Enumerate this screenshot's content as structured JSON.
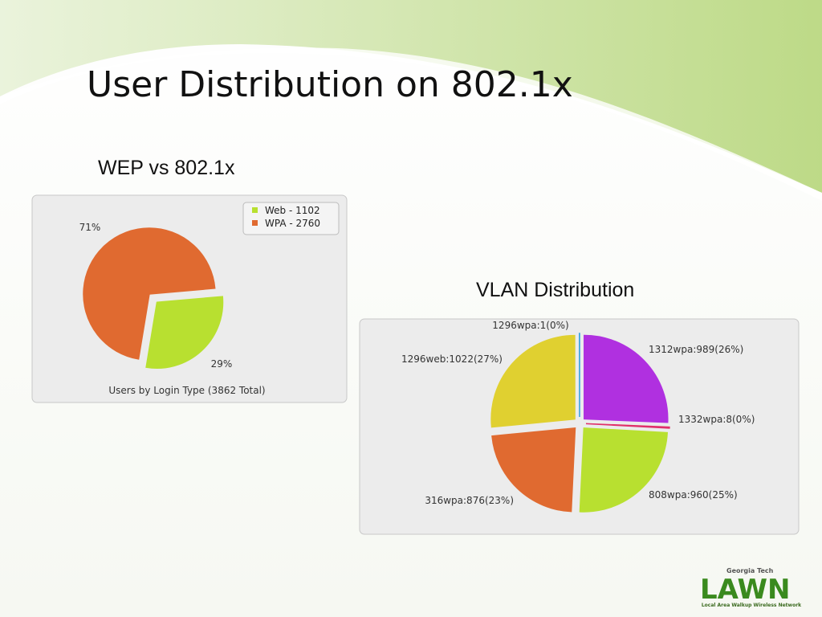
{
  "slide": {
    "title": "User Distribution on 802.1x"
  },
  "chart_data": [
    {
      "type": "pie",
      "heading": "WEP vs 802.1x",
      "title": "Users by Login Type (3862 Total)",
      "categories": [
        "Web - 1102",
        "WPA - 2760"
      ],
      "values": [
        29,
        71
      ],
      "value_labels": [
        "29%",
        "71%"
      ],
      "colors": [
        "#b8e030",
        "#e06a30"
      ],
      "legend": "top-right"
    },
    {
      "type": "pie",
      "heading": "VLAN Distribution",
      "categories": [
        "1312wpa:989(26%)",
        "1332wpa:8(0%)",
        "808wpa:960(25%)",
        "316wpa:876(23%)",
        "1296web:1022(27%)",
        "1296wpa:1(0%)"
      ],
      "values": [
        989,
        8,
        960,
        876,
        1022,
        1
      ],
      "colors": [
        "#b030e0",
        "#e0306a",
        "#b8e030",
        "#e06a30",
        "#e0d030",
        "#30a0e0"
      ]
    }
  ],
  "logo": {
    "org": "Georgia Tech",
    "name": "LAWN",
    "tagline": "Local Area Walkup Wireless Network"
  }
}
